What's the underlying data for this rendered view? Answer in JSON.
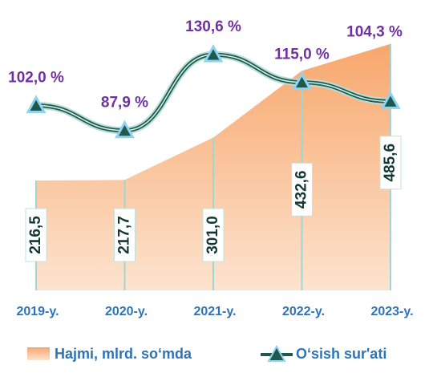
{
  "chart_data": {
    "type": "area",
    "categories": [
      "2019-y.",
      "2020-y.",
      "2021-y.",
      "2022-y.",
      "2023-y."
    ],
    "series": [
      {
        "name": "Hajmi, mlrd. so‘mda",
        "type": "area",
        "color": "#f9b98a",
        "values": [
          216.5,
          217.7,
          301.0,
          432.6,
          485.6
        ],
        "value_labels": [
          "216,5",
          "217,7",
          "301,0",
          "432,6",
          "485,6"
        ]
      },
      {
        "name": "O‘sish sur'ati",
        "type": "line",
        "axis": "y2",
        "color": "#1e5a4c",
        "values": [
          102.0,
          87.9,
          130.6,
          115.0,
          104.3
        ],
        "value_labels": [
          "102,0 %",
          "87,9 %",
          "130,6 %",
          "115,0 %",
          "104,3 %"
        ]
      }
    ],
    "ylim": [
      0,
      550
    ],
    "y2lim": [
      -2,
      155
    ]
  }
}
